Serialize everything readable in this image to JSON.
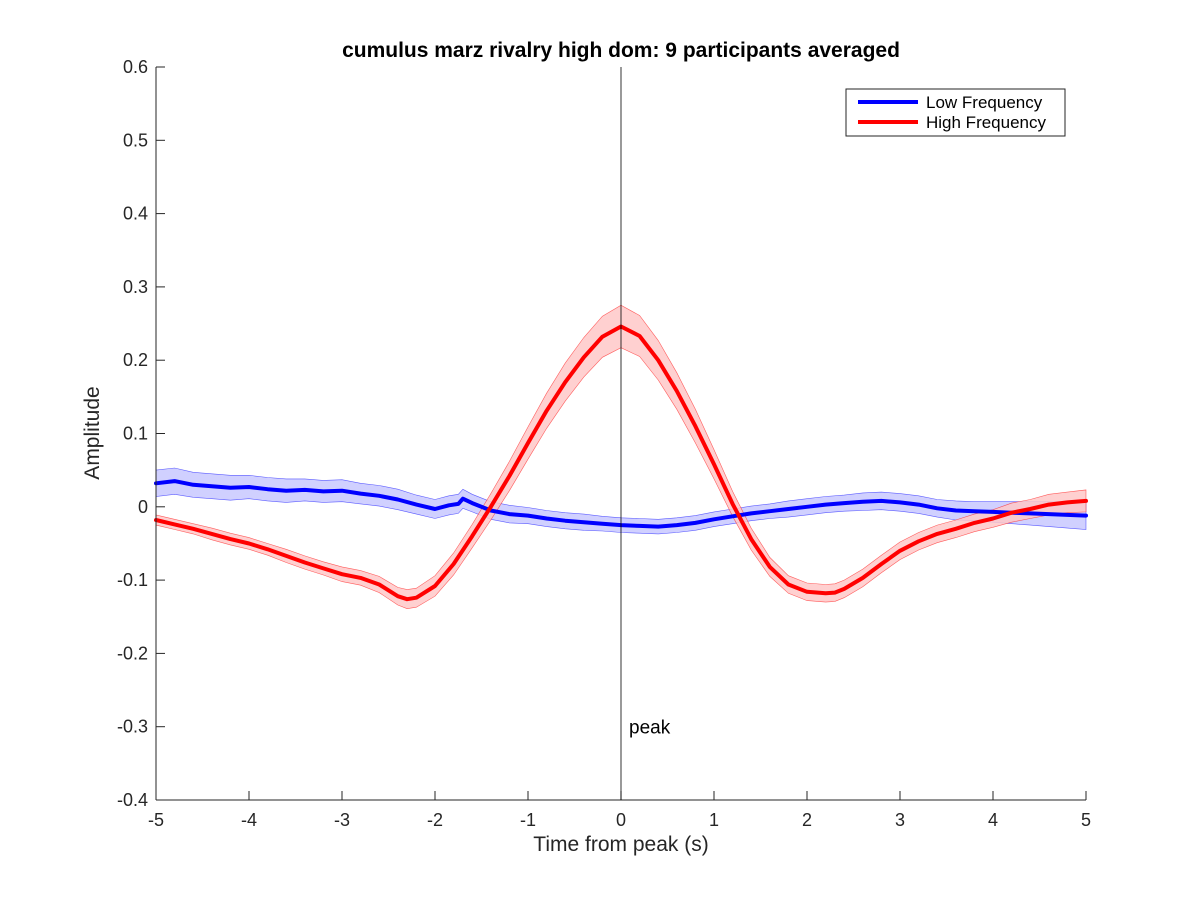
{
  "chart_data": {
    "type": "line",
    "title": "cumulus marz rivalry high dom: 9 participants averaged",
    "xlabel": "Time from peak (s)",
    "ylabel": "Amplitude",
    "xlim": [
      -5,
      5
    ],
    "ylim": [
      -0.4,
      0.6
    ],
    "xticks": [
      -5,
      -4,
      -3,
      -2,
      -1,
      0,
      1,
      2,
      3,
      4,
      5
    ],
    "yticks": [
      -0.4,
      -0.3,
      -0.2,
      -0.1,
      0,
      0.1,
      0.2,
      0.3,
      0.4,
      0.5,
      0.6
    ],
    "xtick_labels": [
      "-5",
      "-4",
      "-3",
      "-2",
      "-1",
      "0",
      "1",
      "2",
      "3",
      "4",
      "5"
    ],
    "ytick_labels": [
      "-0.4",
      "-0.3",
      "-0.2",
      "-0.1",
      "0",
      "0.1",
      "0.2",
      "0.3",
      "0.4",
      "0.5",
      "0.6"
    ],
    "grid": false,
    "legend_position": "top-right",
    "vertical_marker": {
      "x": 0,
      "label": "peak",
      "label_y": -0.3
    },
    "series": [
      {
        "name": "Low Frequency",
        "color": "#0000ff",
        "band_color": "#c8c8ff",
        "x": [
          -5,
          -4.8,
          -4.6,
          -4.4,
          -4.2,
          -4.0,
          -3.8,
          -3.6,
          -3.4,
          -3.2,
          -3.0,
          -2.8,
          -2.6,
          -2.4,
          -2.2,
          -2.0,
          -1.85,
          -1.75,
          -1.7,
          -1.6,
          -1.4,
          -1.2,
          -1.0,
          -0.8,
          -0.6,
          -0.4,
          -0.2,
          0.0,
          0.2,
          0.4,
          0.6,
          0.8,
          1.0,
          1.2,
          1.4,
          1.6,
          1.8,
          2.0,
          2.2,
          2.4,
          2.6,
          2.8,
          3.0,
          3.2,
          3.4,
          3.6,
          3.8,
          4.0,
          4.2,
          4.4,
          4.6,
          4.8,
          5.0
        ],
        "y": [
          0.032,
          0.035,
          0.03,
          0.028,
          0.026,
          0.027,
          0.024,
          0.022,
          0.023,
          0.021,
          0.022,
          0.018,
          0.015,
          0.01,
          0.003,
          -0.003,
          0.002,
          0.004,
          0.011,
          0.005,
          -0.005,
          -0.01,
          -0.012,
          -0.016,
          -0.019,
          -0.021,
          -0.023,
          -0.025,
          -0.026,
          -0.027,
          -0.025,
          -0.022,
          -0.017,
          -0.013,
          -0.009,
          -0.006,
          -0.003,
          0.0,
          0.003,
          0.005,
          0.007,
          0.008,
          0.006,
          0.003,
          -0.002,
          -0.005,
          -0.006,
          -0.007,
          -0.008,
          -0.009,
          -0.01,
          -0.011,
          -0.012
        ],
        "err": [
          0.018,
          0.018,
          0.017,
          0.017,
          0.017,
          0.016,
          0.016,
          0.016,
          0.015,
          0.015,
          0.015,
          0.014,
          0.014,
          0.014,
          0.013,
          0.013,
          0.013,
          0.013,
          0.013,
          0.012,
          0.012,
          0.012,
          0.011,
          0.011,
          0.011,
          0.011,
          0.01,
          0.01,
          0.01,
          0.01,
          0.01,
          0.01,
          0.01,
          0.01,
          0.01,
          0.01,
          0.011,
          0.011,
          0.011,
          0.011,
          0.012,
          0.012,
          0.012,
          0.012,
          0.012,
          0.013,
          0.013,
          0.014,
          0.015,
          0.016,
          0.017,
          0.018,
          0.019
        ]
      },
      {
        "name": "High Frequency",
        "color": "#ff0000",
        "band_color": "#ffc8c8",
        "x": [
          -5,
          -4.8,
          -4.6,
          -4.4,
          -4.2,
          -4.0,
          -3.8,
          -3.6,
          -3.4,
          -3.2,
          -3.0,
          -2.8,
          -2.6,
          -2.4,
          -2.3,
          -2.2,
          -2.0,
          -1.8,
          -1.6,
          -1.4,
          -1.2,
          -1.0,
          -0.8,
          -0.6,
          -0.4,
          -0.2,
          0.0,
          0.2,
          0.4,
          0.6,
          0.8,
          1.0,
          1.2,
          1.4,
          1.6,
          1.8,
          2.0,
          2.2,
          2.3,
          2.4,
          2.6,
          2.8,
          3.0,
          3.2,
          3.4,
          3.6,
          3.8,
          4.0,
          4.2,
          4.4,
          4.6,
          4.8,
          5.0
        ],
        "y": [
          -0.018,
          -0.024,
          -0.03,
          -0.037,
          -0.044,
          -0.05,
          -0.058,
          -0.067,
          -0.076,
          -0.084,
          -0.092,
          -0.097,
          -0.106,
          -0.122,
          -0.126,
          -0.124,
          -0.108,
          -0.078,
          -0.04,
          0.0,
          0.042,
          0.087,
          0.131,
          0.17,
          0.204,
          0.232,
          0.246,
          0.233,
          0.2,
          0.158,
          0.11,
          0.058,
          0.004,
          -0.044,
          -0.082,
          -0.106,
          -0.116,
          -0.118,
          -0.117,
          -0.112,
          -0.097,
          -0.078,
          -0.06,
          -0.047,
          -0.037,
          -0.03,
          -0.022,
          -0.016,
          -0.008,
          -0.003,
          0.003,
          0.006,
          0.008
        ],
        "err": [
          0.007,
          0.007,
          0.007,
          0.008,
          0.008,
          0.008,
          0.008,
          0.009,
          0.009,
          0.009,
          0.01,
          0.01,
          0.011,
          0.012,
          0.013,
          0.013,
          0.014,
          0.015,
          0.016,
          0.018,
          0.02,
          0.022,
          0.024,
          0.026,
          0.027,
          0.028,
          0.029,
          0.028,
          0.027,
          0.025,
          0.023,
          0.02,
          0.017,
          0.015,
          0.013,
          0.012,
          0.012,
          0.012,
          0.012,
          0.012,
          0.012,
          0.012,
          0.012,
          0.012,
          0.012,
          0.012,
          0.012,
          0.012,
          0.013,
          0.013,
          0.014,
          0.014,
          0.015
        ]
      }
    ]
  }
}
